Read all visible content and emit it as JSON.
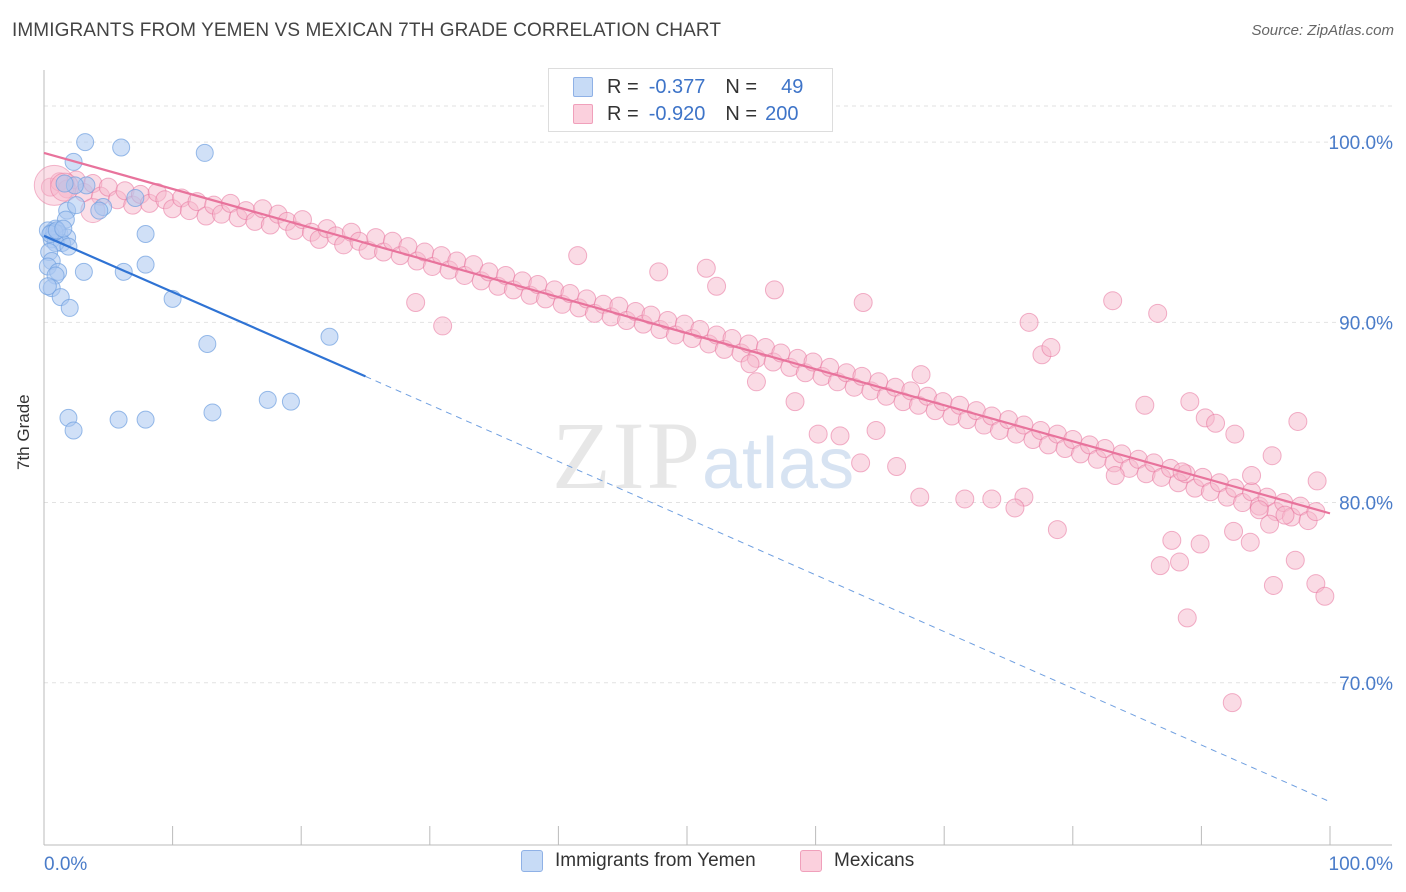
{
  "title": "IMMIGRANTS FROM YEMEN VS MEXICAN 7TH GRADE CORRELATION CHART",
  "source": "Source: ZipAtlas.com",
  "watermark": {
    "zip": "ZIP",
    "atlas": "atlas"
  },
  "legend_top": {
    "rows": [
      {
        "r_label": "R =",
        "r_value": "-0.377",
        "n_label": "N =",
        "n_value": "49",
        "color": "#a9c6f0"
      },
      {
        "r_label": "R =",
        "r_value": "-0.920",
        "n_label": "N =",
        "n_value": "200",
        "color": "#f6b8cb"
      }
    ]
  },
  "chart_data": {
    "type": "scatter",
    "xlabel": "",
    "ylabel": "7th Grade",
    "xlim": [
      0,
      100
    ],
    "ylim": [
      61,
      104
    ],
    "x_tick_labels": [
      "0.0%",
      "100.0%"
    ],
    "y_ticks": [
      70,
      80,
      90,
      100
    ],
    "y_tick_labels": [
      "70.0%",
      "80.0%",
      "90.0%",
      "100.0%"
    ],
    "grid": true,
    "legend_position": "top-center",
    "series": [
      {
        "name": "Immigrants from Yemen",
        "color": "#6f9fe0",
        "fill": "#a9c6f0",
        "trend": {
          "x0": 0,
          "y0": 94.8,
          "x1": 25,
          "y1": 87.0,
          "dash_to_x": 100,
          "dash_to_y": 63.4
        },
        "points": [
          [
            3.2,
            100.0
          ],
          [
            6.0,
            99.7
          ],
          [
            12.5,
            99.4
          ],
          [
            2.3,
            98.9
          ],
          [
            3.3,
            97.6
          ],
          [
            2.4,
            97.6
          ],
          [
            1.6,
            97.7
          ],
          [
            4.6,
            96.4
          ],
          [
            7.1,
            96.9
          ],
          [
            1.8,
            96.2
          ],
          [
            2.5,
            96.5
          ],
          [
            1.7,
            95.7
          ],
          [
            0.6,
            95.0
          ],
          [
            0.9,
            95.2
          ],
          [
            1.2,
            94.9
          ],
          [
            0.3,
            95.1
          ],
          [
            0.6,
            94.6
          ],
          [
            1.8,
            94.7
          ],
          [
            1.4,
            94.4
          ],
          [
            0.9,
            94.4
          ],
          [
            0.4,
            93.9
          ],
          [
            1.9,
            94.2
          ],
          [
            0.6,
            93.4
          ],
          [
            0.3,
            93.1
          ],
          [
            7.9,
            94.9
          ],
          [
            7.9,
            93.2
          ],
          [
            3.1,
            92.8
          ],
          [
            6.2,
            92.8
          ],
          [
            1.1,
            92.8
          ],
          [
            0.9,
            92.6
          ],
          [
            0.6,
            91.9
          ],
          [
            0.3,
            92.0
          ],
          [
            1.3,
            91.4
          ],
          [
            10.0,
            91.3
          ],
          [
            2.0,
            90.8
          ],
          [
            12.7,
            88.8
          ],
          [
            22.2,
            89.2
          ],
          [
            17.4,
            85.7
          ],
          [
            19.2,
            85.6
          ],
          [
            13.1,
            85.0
          ],
          [
            1.9,
            84.7
          ],
          [
            5.8,
            84.6
          ],
          [
            7.9,
            84.6
          ],
          [
            2.3,
            84.0
          ],
          [
            0.8,
            95.0
          ],
          [
            0.5,
            94.9
          ],
          [
            1.0,
            95.1
          ],
          [
            4.3,
            96.2
          ],
          [
            1.5,
            95.2
          ]
        ]
      },
      {
        "name": "Mexicans",
        "color": "#e8739c",
        "fill": "#f6b8cb",
        "trend": {
          "x0": 0,
          "y0": 99.4,
          "x1": 100,
          "y1": 79.4
        },
        "points": [
          [
            0.5,
            97.5
          ],
          [
            1.2,
            97.8
          ],
          [
            1.8,
            97.4
          ],
          [
            2.5,
            97.9
          ],
          [
            3.1,
            97.2
          ],
          [
            3.8,
            97.7
          ],
          [
            4.4,
            97.0
          ],
          [
            5.0,
            97.5
          ],
          [
            5.7,
            96.8
          ],
          [
            6.3,
            97.3
          ],
          [
            6.9,
            96.5
          ],
          [
            7.5,
            97.1
          ],
          [
            8.2,
            96.6
          ],
          [
            8.8,
            97.2
          ],
          [
            9.4,
            96.8
          ],
          [
            10.0,
            96.3
          ],
          [
            10.7,
            96.9
          ],
          [
            11.3,
            96.2
          ],
          [
            11.9,
            96.7
          ],
          [
            12.6,
            95.9
          ],
          [
            13.2,
            96.5
          ],
          [
            13.8,
            96.0
          ],
          [
            14.5,
            96.6
          ],
          [
            15.1,
            95.8
          ],
          [
            15.7,
            96.2
          ],
          [
            16.4,
            95.6
          ],
          [
            17.0,
            96.3
          ],
          [
            17.6,
            95.4
          ],
          [
            18.2,
            96.0
          ],
          [
            18.9,
            95.6
          ],
          [
            19.5,
            95.1
          ],
          [
            20.1,
            95.7
          ],
          [
            20.8,
            95.0
          ],
          [
            21.4,
            94.6
          ],
          [
            22.0,
            95.2
          ],
          [
            22.7,
            94.8
          ],
          [
            23.3,
            94.3
          ],
          [
            23.9,
            95.0
          ],
          [
            24.5,
            94.5
          ],
          [
            25.2,
            94.0
          ],
          [
            25.8,
            94.7
          ],
          [
            26.4,
            93.9
          ],
          [
            27.1,
            94.5
          ],
          [
            27.7,
            93.7
          ],
          [
            28.3,
            94.2
          ],
          [
            29.0,
            93.4
          ],
          [
            29.6,
            93.9
          ],
          [
            30.2,
            93.1
          ],
          [
            30.9,
            93.7
          ],
          [
            31.5,
            92.9
          ],
          [
            32.1,
            93.4
          ],
          [
            32.7,
            92.6
          ],
          [
            33.4,
            93.2
          ],
          [
            34.0,
            92.3
          ],
          [
            34.6,
            92.8
          ],
          [
            35.3,
            92.0
          ],
          [
            35.9,
            92.6
          ],
          [
            36.5,
            91.8
          ],
          [
            37.2,
            92.3
          ],
          [
            37.8,
            91.5
          ],
          [
            38.4,
            92.1
          ],
          [
            39.0,
            91.3
          ],
          [
            39.7,
            91.8
          ],
          [
            40.3,
            91.0
          ],
          [
            40.9,
            91.6
          ],
          [
            41.6,
            90.8
          ],
          [
            42.2,
            91.3
          ],
          [
            42.8,
            90.5
          ],
          [
            43.5,
            91.0
          ],
          [
            44.1,
            90.3
          ],
          [
            44.7,
            90.9
          ],
          [
            45.3,
            90.1
          ],
          [
            46.0,
            90.6
          ],
          [
            46.6,
            89.9
          ],
          [
            47.2,
            90.4
          ],
          [
            47.9,
            89.6
          ],
          [
            48.5,
            90.1
          ],
          [
            49.1,
            89.3
          ],
          [
            49.8,
            89.9
          ],
          [
            50.4,
            89.1
          ],
          [
            51.0,
            89.6
          ],
          [
            51.7,
            88.8
          ],
          [
            52.3,
            89.3
          ],
          [
            52.9,
            88.5
          ],
          [
            53.5,
            89.1
          ],
          [
            54.2,
            88.3
          ],
          [
            54.8,
            88.8
          ],
          [
            55.4,
            88.0
          ],
          [
            56.1,
            88.6
          ],
          [
            56.7,
            87.8
          ],
          [
            57.3,
            88.3
          ],
          [
            58.0,
            87.5
          ],
          [
            58.6,
            88.0
          ],
          [
            59.2,
            87.2
          ],
          [
            59.8,
            87.8
          ],
          [
            60.5,
            87.0
          ],
          [
            61.1,
            87.5
          ],
          [
            61.7,
            86.7
          ],
          [
            62.4,
            87.2
          ],
          [
            63.0,
            86.4
          ],
          [
            63.6,
            87.0
          ],
          [
            64.3,
            86.2
          ],
          [
            64.9,
            86.7
          ],
          [
            65.5,
            85.9
          ],
          [
            66.2,
            86.4
          ],
          [
            66.8,
            85.6
          ],
          [
            67.4,
            86.2
          ],
          [
            68.0,
            85.4
          ],
          [
            68.7,
            85.9
          ],
          [
            69.3,
            85.1
          ],
          [
            69.9,
            85.6
          ],
          [
            70.6,
            84.8
          ],
          [
            71.2,
            85.4
          ],
          [
            71.8,
            84.6
          ],
          [
            72.5,
            85.1
          ],
          [
            73.1,
            84.3
          ],
          [
            73.7,
            84.8
          ],
          [
            74.3,
            84.0
          ],
          [
            75.0,
            84.6
          ],
          [
            75.6,
            83.8
          ],
          [
            76.2,
            84.3
          ],
          [
            76.9,
            83.5
          ],
          [
            77.5,
            84.0
          ],
          [
            78.1,
            83.2
          ],
          [
            78.8,
            83.8
          ],
          [
            79.4,
            83.0
          ],
          [
            80.0,
            83.5
          ],
          [
            80.6,
            82.7
          ],
          [
            81.3,
            83.2
          ],
          [
            81.9,
            82.4
          ],
          [
            82.5,
            83.0
          ],
          [
            83.2,
            82.2
          ],
          [
            83.8,
            82.7
          ],
          [
            84.4,
            81.9
          ],
          [
            85.1,
            82.4
          ],
          [
            85.7,
            81.6
          ],
          [
            86.3,
            82.2
          ],
          [
            86.9,
            81.4
          ],
          [
            87.6,
            81.9
          ],
          [
            88.2,
            81.1
          ],
          [
            88.8,
            81.6
          ],
          [
            89.5,
            80.8
          ],
          [
            90.1,
            81.4
          ],
          [
            90.7,
            80.6
          ],
          [
            91.4,
            81.1
          ],
          [
            92.0,
            80.3
          ],
          [
            92.6,
            80.8
          ],
          [
            93.2,
            80.0
          ],
          [
            93.9,
            80.6
          ],
          [
            94.5,
            79.8
          ],
          [
            95.1,
            80.3
          ],
          [
            95.8,
            79.5
          ],
          [
            96.4,
            80.0
          ],
          [
            97.0,
            79.2
          ],
          [
            97.7,
            79.8
          ],
          [
            98.3,
            79.0
          ],
          [
            98.9,
            79.5
          ],
          [
            28.9,
            91.1
          ],
          [
            31.0,
            89.8
          ],
          [
            41.5,
            93.7
          ],
          [
            47.8,
            92.8
          ],
          [
            51.5,
            93.0
          ],
          [
            52.3,
            92.0
          ],
          [
            56.8,
            91.8
          ],
          [
            63.7,
            91.1
          ],
          [
            68.2,
            87.1
          ],
          [
            76.6,
            90.0
          ],
          [
            77.6,
            88.2
          ],
          [
            78.3,
            88.6
          ],
          [
            83.1,
            91.2
          ],
          [
            86.6,
            90.5
          ],
          [
            89.1,
            85.6
          ],
          [
            90.3,
            84.7
          ],
          [
            91.1,
            84.4
          ],
          [
            85.6,
            85.4
          ],
          [
            88.5,
            81.7
          ],
          [
            83.3,
            81.5
          ],
          [
            92.6,
            83.8
          ],
          [
            97.5,
            84.5
          ],
          [
            99.0,
            81.2
          ],
          [
            95.5,
            82.6
          ],
          [
            93.9,
            81.5
          ],
          [
            98.9,
            75.5
          ],
          [
            99.6,
            74.8
          ],
          [
            97.3,
            76.8
          ],
          [
            96.5,
            79.3
          ],
          [
            95.3,
            78.8
          ],
          [
            94.5,
            79.6
          ],
          [
            93.8,
            77.8
          ],
          [
            92.5,
            78.4
          ],
          [
            89.9,
            77.7
          ],
          [
            88.3,
            76.7
          ],
          [
            87.7,
            77.9
          ],
          [
            86.8,
            76.5
          ],
          [
            88.9,
            73.6
          ],
          [
            92.4,
            68.9
          ],
          [
            95.6,
            75.4
          ],
          [
            76.2,
            80.3
          ],
          [
            73.7,
            80.2
          ],
          [
            78.8,
            78.5
          ],
          [
            75.5,
            79.7
          ],
          [
            71.6,
            80.2
          ],
          [
            68.1,
            80.3
          ],
          [
            61.9,
            83.7
          ],
          [
            63.5,
            82.2
          ],
          [
            64.7,
            84.0
          ],
          [
            58.4,
            85.6
          ],
          [
            54.9,
            87.7
          ],
          [
            55.4,
            86.7
          ],
          [
            60.2,
            83.8
          ],
          [
            66.3,
            82.0
          ]
        ]
      }
    ]
  }
}
